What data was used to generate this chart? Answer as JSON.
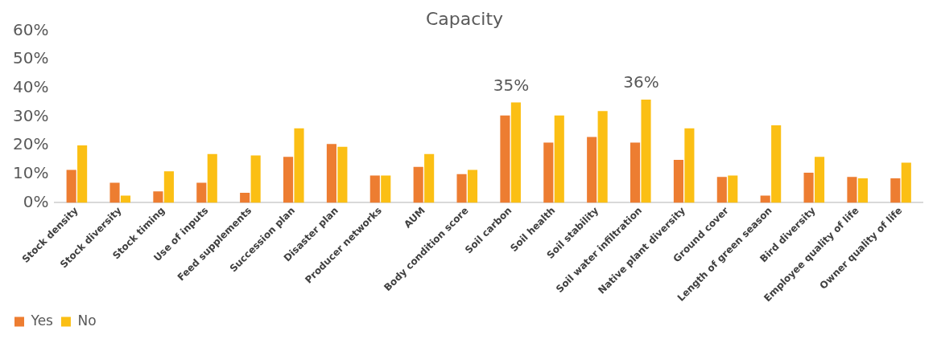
{
  "chart_data": {
    "type": "bar",
    "title": "Capacity",
    "categories": [
      "Stock density",
      "Stock diversity",
      "Stock timing",
      "Use of inputs",
      "Feed supplements",
      "Succession plan",
      "Disaster plan",
      "Producer networks",
      "AUM",
      "Body condition score",
      "Soil carbon",
      "Soil health",
      "Soil stability",
      "Soil water infiltration",
      "Native plant diversity",
      "Ground cover",
      "Length of green season",
      "Bird diversity",
      "Employee quality of life",
      "Owner quality of life"
    ],
    "series": [
      {
        "name": "Yes",
        "color": "#ed7d31",
        "values": [
          11.5,
          7,
          4,
          7,
          3.5,
          16,
          20.5,
          9.5,
          12.5,
          10,
          30.5,
          21,
          23,
          21,
          15,
          9,
          2.5,
          10.5,
          9,
          8.5
        ]
      },
      {
        "name": "No",
        "color": "#fbbf14",
        "values": [
          20,
          2.5,
          11,
          17,
          16.5,
          26,
          19.5,
          9.5,
          17,
          11.5,
          35,
          30.5,
          32,
          36,
          26,
          9.5,
          27,
          16,
          8.5,
          14
        ],
        "value_labels": [
          null,
          null,
          null,
          null,
          null,
          null,
          null,
          null,
          null,
          null,
          "35%",
          null,
          null,
          "36%",
          null,
          null,
          null,
          null,
          null,
          null
        ]
      }
    ],
    "ylim": [
      0,
      60
    ],
    "yticks": [
      {
        "value": 0,
        "label": "0%"
      },
      {
        "value": 10,
        "label": "10%"
      },
      {
        "value": 20,
        "label": "20%"
      },
      {
        "value": 30,
        "label": "30%"
      },
      {
        "value": 40,
        "label": "40%"
      },
      {
        "value": 50,
        "label": "50%"
      },
      {
        "value": 60,
        "label": "60%"
      }
    ],
    "grid": false,
    "legend": "bottom left"
  }
}
